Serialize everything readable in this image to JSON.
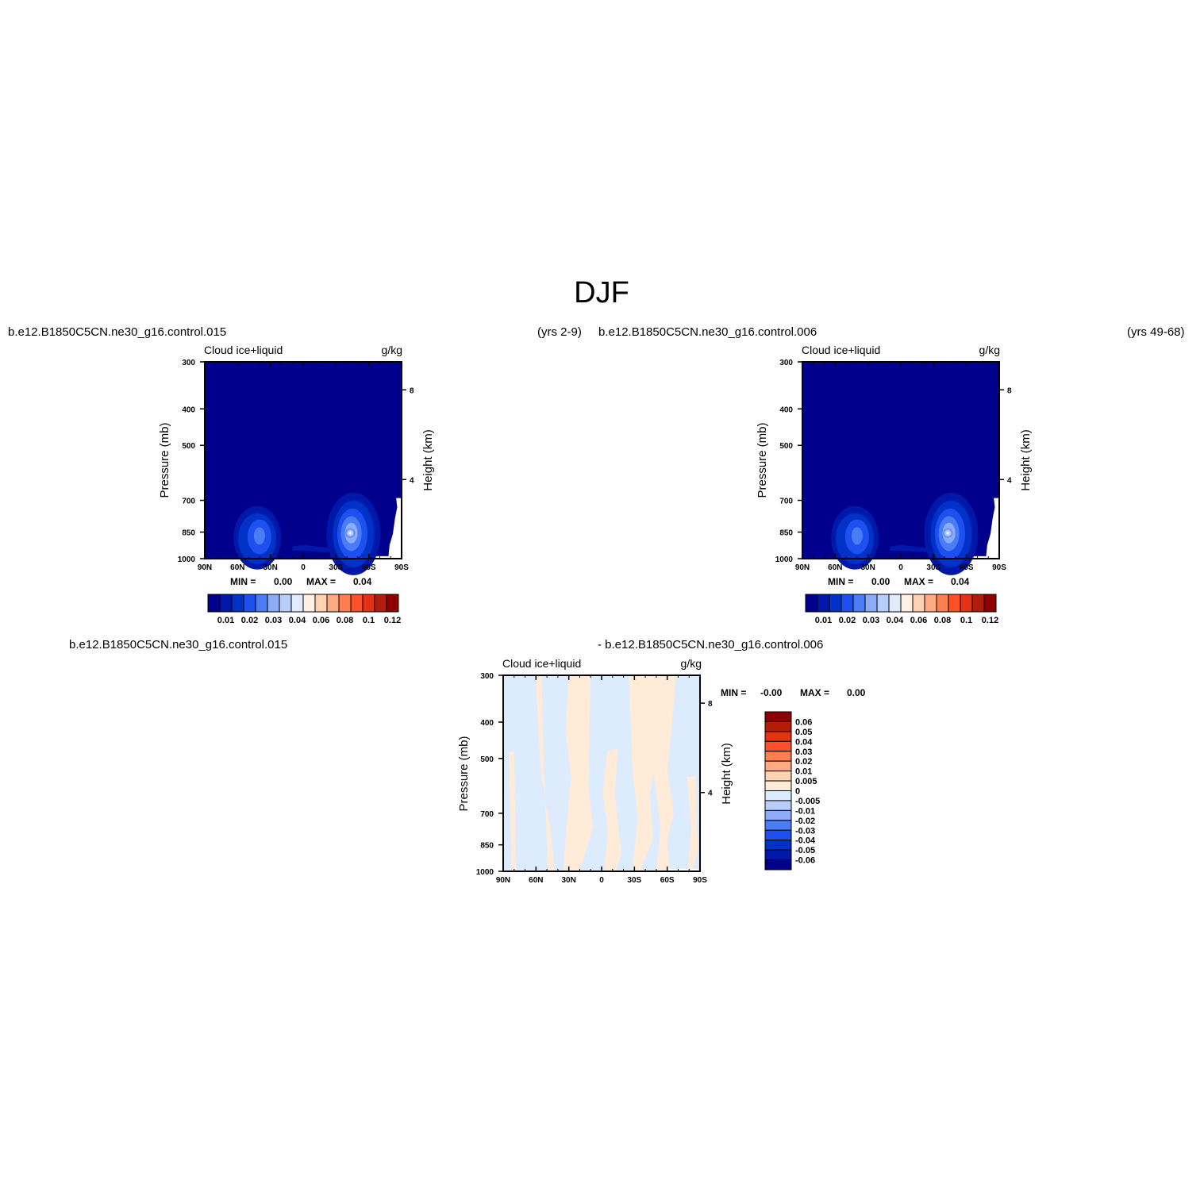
{
  "figure": {
    "title": "DJF"
  },
  "panels": [
    {
      "id": "p1",
      "case_label": "b.e12.B1850C5CN.ne30_g16.control.015",
      "years_label": "(yrs 2-9)",
      "variable": "Cloud ice+liquid",
      "units": "g/kg",
      "y_label": "Pressure (mb)",
      "y2_label": "Height (km)",
      "stats": {
        "min_label": "MIN =",
        "min": "0.00",
        "max_label": "MAX =",
        "max": "0.04"
      }
    },
    {
      "id": "p2",
      "case_label": "b.e12.B1850C5CN.ne30_g16.control.006",
      "years_label": "(yrs 49-68)",
      "variable": "Cloud ice+liquid",
      "units": "g/kg",
      "y_label": "Pressure (mb)",
      "y2_label": "Height (km)",
      "stats": {
        "min_label": "MIN =",
        "min": "0.00",
        "max_label": "MAX =",
        "max": "0.04"
      }
    },
    {
      "id": "p3",
      "case_label_a": "b.e12.B1850C5CN.ne30_g16.control.015",
      "case_label_b": "- b.e12.B1850C5CN.ne30_g16.control.006",
      "variable": "Cloud ice+liquid",
      "units": "g/kg",
      "y_label": "Pressure (mb)",
      "y2_label": "Height (km)",
      "stats": {
        "min_label": "MIN =",
        "min": "-0.00",
        "max_label": "MAX =",
        "max": "0.00"
      }
    }
  ],
  "chart_data": [
    {
      "type": "heatmap",
      "panel": "p1",
      "x_ticks": [
        "90N",
        "60N",
        "30N",
        "0",
        "30S",
        "60S",
        "90S"
      ],
      "x_values": [
        -90,
        -60,
        -30,
        0,
        30,
        60,
        90
      ],
      "y_ticks": [
        "300",
        "400",
        "500",
        "700",
        "850",
        "1000"
      ],
      "y_values": [
        300,
        400,
        500,
        700,
        850,
        1000
      ],
      "y_scale": "log",
      "y_inverted": true,
      "y2_ticks": [
        "8",
        "4"
      ],
      "y2_values": [
        8,
        4
      ],
      "levels": [
        0.01,
        0.02,
        0.03,
        0.04,
        0.06,
        0.08,
        0.1,
        0.12
      ],
      "level_labels": [
        "0.01",
        "0.02",
        "0.03",
        "0.04",
        "0.06",
        "0.08",
        "0.1",
        "0.12"
      ],
      "colors": [
        "#00008c",
        "#0018aa",
        "#0032c8",
        "#1e50f0",
        "#4a7cf5",
        "#8cacf8",
        "#b8cdfa",
        "#e0ecfe",
        "#fff0e6",
        "#ffd2b4",
        "#ffaa82",
        "#ff7f50",
        "#ff5028",
        "#e63214",
        "#b41c0a",
        "#8c0000"
      ],
      "features": [
        {
          "lat": -45,
          "p": 880,
          "value": 0.04,
          "shape": "core"
        },
        {
          "lat": -47,
          "p": 870,
          "value": 0.035
        },
        {
          "lat": -50,
          "p": 850,
          "value": 0.03
        },
        {
          "lat": -45,
          "p": 850,
          "value": 0.02
        },
        {
          "lat": -48,
          "p": 860,
          "value": 0.015
        },
        {
          "lat": -45,
          "p": 840,
          "value": 0.01
        },
        {
          "lat": -40,
          "p": 830,
          "value": 0.005
        },
        {
          "lat": 37,
          "p": 880,
          "value": 0.03
        },
        {
          "lat": 40,
          "p": 870,
          "value": 0.025
        },
        {
          "lat": 45,
          "p": 880,
          "value": 0.02
        },
        {
          "lat": 45,
          "p": 880,
          "value": 0.01
        },
        {
          "lat": 45,
          "p": 870,
          "value": 0.005
        }
      ]
    },
    {
      "type": "heatmap",
      "panel": "p2",
      "x_ticks": [
        "90N",
        "60N",
        "30N",
        "0",
        "30S",
        "60S",
        "90S"
      ],
      "x_values": [
        -90,
        -60,
        -30,
        0,
        30,
        60,
        90
      ],
      "y_ticks": [
        "300",
        "400",
        "500",
        "700",
        "850",
        "1000"
      ],
      "y_values": [
        300,
        400,
        500,
        700,
        850,
        1000
      ],
      "y_scale": "log",
      "y_inverted": true,
      "y2_ticks": [
        "8",
        "4"
      ],
      "y2_values": [
        8,
        4
      ],
      "levels": [
        0.01,
        0.02,
        0.03,
        0.04,
        0.06,
        0.08,
        0.1,
        0.12
      ],
      "level_labels": [
        "0.01",
        "0.02",
        "0.03",
        "0.04",
        "0.06",
        "0.08",
        "0.1",
        "0.12"
      ],
      "colors": [
        "#00008c",
        "#0018aa",
        "#0032c8",
        "#1e50f0",
        "#4a7cf5",
        "#8cacf8",
        "#b8cdfa",
        "#e0ecfe",
        "#fff0e6",
        "#ffd2b4",
        "#ffaa82",
        "#ff7f50",
        "#ff5028",
        "#e63214",
        "#b41c0a",
        "#8c0000"
      ]
    },
    {
      "type": "heatmap",
      "panel": "p3",
      "x_ticks": [
        "90N",
        "60N",
        "30N",
        "0",
        "30S",
        "60S",
        "90S"
      ],
      "x_values": [
        -90,
        -60,
        -30,
        0,
        30,
        60,
        90
      ],
      "y_ticks": [
        "300",
        "400",
        "500",
        "700",
        "850",
        "1000"
      ],
      "y_values": [
        300,
        400,
        500,
        700,
        850,
        1000
      ],
      "y_scale": "log",
      "y_inverted": true,
      "y2_ticks": [
        "8",
        "4"
      ],
      "y2_values": [
        8,
        4
      ],
      "levels": [
        -0.06,
        -0.05,
        -0.04,
        -0.03,
        -0.02,
        -0.01,
        -0.005,
        0,
        0.005,
        0.01,
        0.02,
        0.03,
        0.04,
        0.05,
        0.06
      ],
      "level_labels": [
        "-0.06",
        "-0.05",
        "-0.04",
        "-0.03",
        "-0.02",
        "-0.01",
        "-0.005",
        "0",
        "0.005",
        "0.01",
        "0.02",
        "0.03",
        "0.04",
        "0.05",
        "0.06"
      ],
      "colors": [
        "#00008c",
        "#0018aa",
        "#0032c8",
        "#1e50f0",
        "#4a7cf5",
        "#8cacf8",
        "#b8cdfa",
        "#dcebfd",
        "#ffebd7",
        "#ffd2b4",
        "#ffaa82",
        "#ff7f50",
        "#ff5028",
        "#e63214",
        "#b41c0a",
        "#8c0000"
      ],
      "background_value": -0.002,
      "positive_value": 0.002
    }
  ]
}
